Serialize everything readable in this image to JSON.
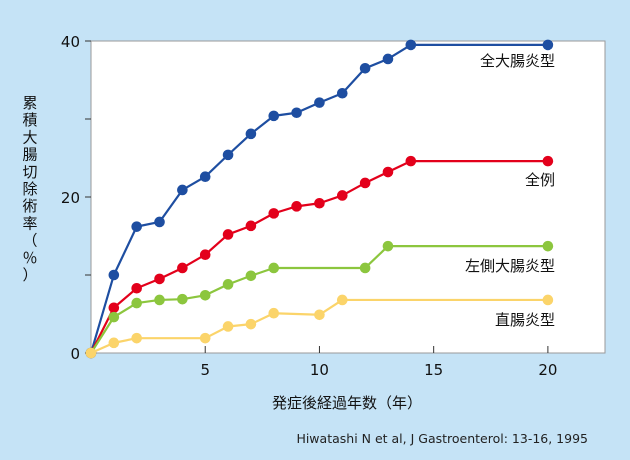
{
  "chart_data": {
    "type": "line",
    "xlabel": "発症後経過年数（年）",
    "ylabel": "累積大腸切除術率（％）",
    "xlim": [
      0,
      22.5
    ],
    "ylim": [
      0,
      40
    ],
    "xticks": [
      5,
      10,
      15,
      20
    ],
    "yticks": [
      0,
      20,
      40
    ],
    "grid": false,
    "legend": "inline-right",
    "series": [
      {
        "name": "全大腸炎型",
        "color": "#1e4ea1",
        "x": [
          0,
          1,
          2,
          3,
          4,
          5,
          6,
          7,
          8,
          9,
          10,
          11,
          12,
          13,
          14,
          20
        ],
        "y": [
          0,
          10,
          16.2,
          16.8,
          20.9,
          22.6,
          25.4,
          28.1,
          30.4,
          30.8,
          32.1,
          33.3,
          36.5,
          37.7,
          39.5,
          39.5
        ]
      },
      {
        "name": "全例",
        "color": "#e3001b",
        "x": [
          0,
          1,
          2,
          3,
          4,
          5,
          6,
          7,
          8,
          9,
          10,
          11,
          12,
          13,
          14,
          20
        ],
        "y": [
          0,
          5.8,
          8.3,
          9.5,
          10.9,
          12.6,
          15.2,
          16.3,
          17.9,
          18.8,
          19.2,
          20.2,
          21.8,
          23.2,
          24.6,
          24.6
        ]
      },
      {
        "name": "左側大腸炎型",
        "color": "#8cc63e",
        "x": [
          0,
          1,
          2,
          3,
          4,
          5,
          6,
          7,
          8,
          12,
          13,
          20
        ],
        "y": [
          0,
          4.6,
          6.4,
          6.8,
          6.9,
          7.4,
          8.8,
          9.9,
          10.9,
          10.9,
          13.7,
          13.7
        ]
      },
      {
        "name": "直腸炎型",
        "color": "#fbd46a",
        "x": [
          0,
          1,
          2,
          5,
          6,
          7,
          8,
          10,
          11,
          20
        ],
        "y": [
          0,
          1.3,
          1.9,
          1.9,
          3.4,
          3.7,
          5.1,
          4.9,
          6.8,
          6.8
        ]
      }
    ]
  },
  "citation": "Hiwatashi N et al, J Gastroenterol:  13-16, 1995"
}
